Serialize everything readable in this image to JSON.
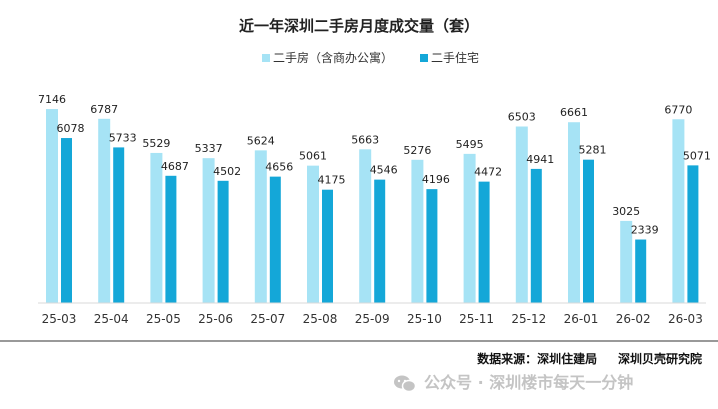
{
  "chart_data": {
    "type": "bar",
    "title": "近一年深圳二手房月度成交量（套）",
    "categories": [
      "25-03",
      "25-04",
      "25-05",
      "25-06",
      "25-07",
      "25-08",
      "25-09",
      "25-10",
      "25-11",
      "25-12",
      "26-01",
      "26-02",
      "26-03"
    ],
    "series": [
      {
        "name": "二手房（含商办公寓）",
        "color": "#a6e3f5",
        "values": [
          7146,
          6787,
          5529,
          5337,
          5624,
          5061,
          5663,
          5276,
          5495,
          6503,
          6661,
          3025,
          6770
        ]
      },
      {
        "name": "二手住宅",
        "color": "#14a7d8",
        "values": [
          6078,
          5733,
          4687,
          4502,
          4656,
          4175,
          4546,
          4196,
          4472,
          4941,
          5281,
          2339,
          5071
        ]
      }
    ],
    "ylim": [
      0,
      7500
    ],
    "grid": false,
    "legend_position": "top-center"
  },
  "footer": {
    "source": "数据来源：深圳住建局     深圳贝壳研究院"
  },
  "watermark": {
    "text": "公众号 · 深圳楼市每天一分钟",
    "icon": "wechat-icon"
  }
}
